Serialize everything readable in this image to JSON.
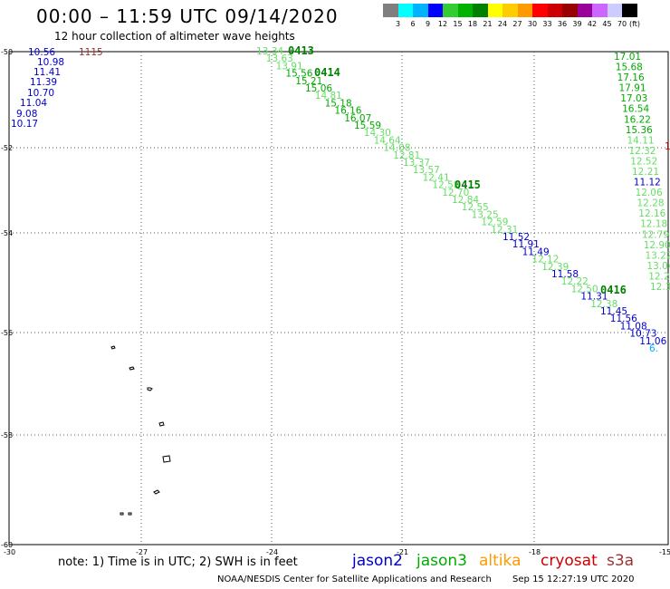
{
  "header": {
    "title": "00:00 – 11:59 UTC 09/14/2020",
    "subtitle": "12 hour collection of altimeter wave heights"
  },
  "scale": {
    "colors": [
      "#7f7f7f",
      "#00ffff",
      "#00b3ff",
      "#0000ff",
      "#33cc33",
      "#00b300",
      "#008000",
      "#ffff00",
      "#ffcc00",
      "#ff9900",
      "#ff0000",
      "#cc0000",
      "#990000",
      "#990099",
      "#cc66ff",
      "#ccccff",
      "#000000"
    ],
    "labels": [
      "3",
      "6",
      "9",
      "12",
      "15",
      "18",
      "21",
      "24",
      "27",
      "30",
      "33",
      "36",
      "39",
      "42",
      "45",
      "70",
      "(ft)"
    ]
  },
  "axes": {
    "lat_labels": [
      "-50",
      "-52",
      "-54",
      "-56",
      "-58",
      "-60"
    ],
    "lon_labels": [
      "-30",
      "-27",
      "-24",
      "-21",
      "-18",
      "-15"
    ]
  },
  "colors": {
    "jason2": "#0000cc",
    "jason3": "#00aa00",
    "altika": "#ff9900",
    "cryosat": "#cc0000",
    "s3a": "#993333",
    "light_green": "#66dd66",
    "cyan": "#00aaff"
  },
  "pass_labels": [
    "0413",
    "0414",
    "0415",
    "0416"
  ],
  "track_left": [
    {
      "text": "10.56",
      "c": "jason2"
    },
    {
      "text": "10.98",
      "c": "jason2"
    },
    {
      "text": "11.41",
      "c": "jason2"
    },
    {
      "text": "11.39",
      "c": "jason2"
    },
    {
      "text": "10.70",
      "c": "jason2"
    },
    {
      "text": "11.04",
      "c": "jason2"
    },
    {
      "text": "9.08",
      "c": "jason2"
    },
    {
      "text": "10.17",
      "c": "jason2"
    }
  ],
  "track_left_s3a": "1115",
  "track_diag": [
    {
      "text": "13.34",
      "c": "light_green"
    },
    {
      "text": "13.63",
      "c": "light_green"
    },
    {
      "text": "13.91",
      "c": "light_green"
    },
    {
      "text": "15.56",
      "c": "jason3"
    },
    {
      "text": "15.21",
      "c": "jason3"
    },
    {
      "text": "15.06",
      "c": "jason3"
    },
    {
      "text": "14.81",
      "c": "light_green"
    },
    {
      "text": "15.18",
      "c": "jason3"
    },
    {
      "text": "16.16",
      "c": "jason3"
    },
    {
      "text": "16.07",
      "c": "jason3"
    },
    {
      "text": "15.59",
      "c": "jason3"
    },
    {
      "text": "14.30",
      "c": "light_green"
    },
    {
      "text": "14.64",
      "c": "light_green"
    },
    {
      "text": "14.08",
      "c": "light_green"
    },
    {
      "text": "12.81",
      "c": "light_green"
    },
    {
      "text": "13.37",
      "c": "light_green"
    },
    {
      "text": "13.57",
      "c": "light_green"
    },
    {
      "text": "12.41",
      "c": "light_green"
    },
    {
      "text": "12.58",
      "c": "light_green"
    },
    {
      "text": "12.70",
      "c": "light_green"
    },
    {
      "text": "12.84",
      "c": "light_green"
    },
    {
      "text": "12.55",
      "c": "light_green"
    },
    {
      "text": "13.25",
      "c": "light_green"
    },
    {
      "text": "12.59",
      "c": "light_green"
    },
    {
      "text": "12.31",
      "c": "light_green"
    },
    {
      "text": "11.52",
      "c": "jason2"
    },
    {
      "text": "11.91",
      "c": "jason2"
    },
    {
      "text": "11.49",
      "c": "jason2"
    },
    {
      "text": "12.12",
      "c": "light_green"
    },
    {
      "text": "12.39",
      "c": "light_green"
    },
    {
      "text": "11.58",
      "c": "jason2"
    },
    {
      "text": "12.22",
      "c": "light_green"
    },
    {
      "text": "12.50",
      "c": "light_green"
    },
    {
      "text": "11.31",
      "c": "jason2"
    },
    {
      "text": "12.38",
      "c": "light_green"
    },
    {
      "text": "11.45",
      "c": "jason2"
    },
    {
      "text": "11.56",
      "c": "jason2"
    },
    {
      "text": "11.08",
      "c": "jason2"
    },
    {
      "text": "10.73",
      "c": "jason2"
    },
    {
      "text": "11.06",
      "c": "jason2"
    },
    {
      "text": "6.",
      "c": "cyan"
    }
  ],
  "track_right": [
    {
      "text": "17.01",
      "c": "jason3"
    },
    {
      "text": "15.68",
      "c": "jason3"
    },
    {
      "text": "17.16",
      "c": "jason3"
    },
    {
      "text": "17.91",
      "c": "jason3"
    },
    {
      "text": "17.03",
      "c": "jason3"
    },
    {
      "text": "16.54",
      "c": "jason3"
    },
    {
      "text": "16.22",
      "c": "jason3"
    },
    {
      "text": "15.36",
      "c": "jason3"
    },
    {
      "text": "14.11",
      "c": "light_green"
    },
    {
      "text": "12.32",
      "c": "light_green"
    },
    {
      "text": "12.52",
      "c": "light_green"
    },
    {
      "text": "12.21",
      "c": "light_green"
    },
    {
      "text": "11.12",
      "c": "jason2"
    },
    {
      "text": "12.06",
      "c": "light_green"
    },
    {
      "text": "12.28",
      "c": "light_green"
    },
    {
      "text": "12.16",
      "c": "light_green"
    },
    {
      "text": "12.18",
      "c": "light_green"
    },
    {
      "text": "12.79",
      "c": "light_green"
    },
    {
      "text": "12.90",
      "c": "light_green"
    },
    {
      "text": "13.22",
      "c": "light_green"
    },
    {
      "text": "13.04",
      "c": "light_green"
    },
    {
      "text": "12.2",
      "c": "light_green"
    },
    {
      "text": "12.3",
      "c": "light_green"
    }
  ],
  "track_right_cryosat": "1",
  "note": "note: 1) Time is in UTC; 2) SWH is in feet",
  "legend": [
    {
      "name": "jason2",
      "c": "jason2"
    },
    {
      "name": "jason3",
      "c": "jason3"
    },
    {
      "name": "altika",
      "c": "altika"
    },
    {
      "name": "cryosat",
      "c": "cryosat"
    },
    {
      "name": "s3a",
      "c": "s3a"
    }
  ],
  "footer": {
    "org": "NOAA/NESDIS Center for Satellite Applications and Research",
    "timestamp": "Sep 15 12:27:19 UTC 2020"
  }
}
